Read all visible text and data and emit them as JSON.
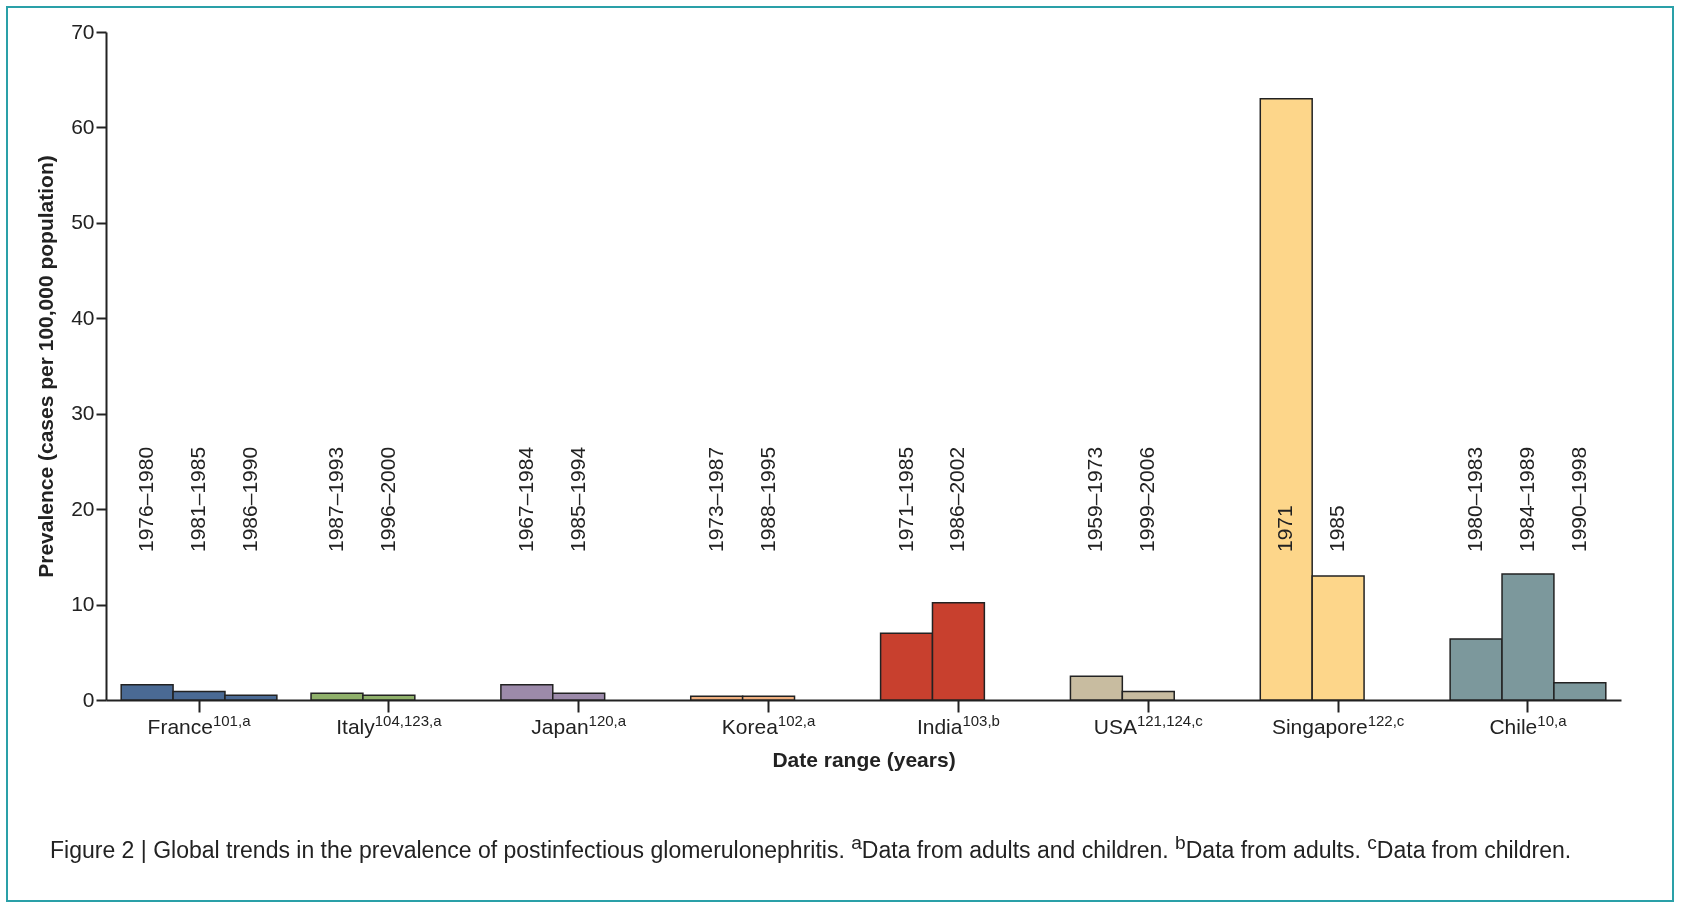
{
  "chart_data": {
    "type": "bar",
    "categories": [
      "France$^{101,a}$",
      "Italy$^{104,123,a}$",
      "Japan$^{120,a}$",
      "Korea$^{102,a}$",
      "India$^{103,b}$",
      "USA$^{121,124,c}$",
      "Singapore$^{122,c}$",
      "Chile$^{10,a}$"
    ],
    "series": [
      {
        "colors": [
          "#4a6a94",
          "#8fb06a",
          "#9c8aaa",
          "#f0b080",
          "#c8402e",
          "#c8bca0",
          "#fdd68a",
          "#7c989c"
        ],
        "values": [
          1.6,
          0.7,
          1.6,
          0.4,
          7.0,
          2.5,
          63,
          6.4
        ]
      },
      {
        "colors": [
          "#4a6a94",
          "#8fb06a",
          "#9c8aaa",
          "#f0b080",
          "#c8402e",
          "#c8bca0",
          "#fdd68a",
          "#7c989c"
        ],
        "values": [
          0.9,
          0.5,
          0.7,
          0.4,
          10.2,
          0.9,
          13.0,
          13.2
        ]
      },
      {
        "colors": [
          "#4a6a94",
          null,
          null,
          null,
          null,
          null,
          null,
          "#7c989c"
        ],
        "values": [
          0.5,
          null,
          null,
          null,
          null,
          null,
          null,
          1.8
        ]
      }
    ],
    "xlabel": "Date range (years)",
    "ylabel": "Prevalence (cases per 100,000 population)",
    "ylim": [
      0,
      70
    ],
    "yticks": [
      0,
      10,
      20,
      30,
      40,
      50,
      60,
      70
    ],
    "annotations": [
      "1976–1980",
      "1981–1985",
      "1986–1990",
      "1987–1993",
      "1996–2000",
      "1967–1984",
      "1985–1994",
      "1973–1987",
      "1988–1995",
      "1971–1985",
      "1986–2002",
      "1959–1973",
      "1999–2006",
      "1971",
      "1985",
      "1980–1983",
      "1984–1989",
      "1990–1998",
      "Figure 2 | Global trends in the prevalence of postinfectious glomerulonephritis. $^{a}$Data from adults and children. $^{b}$Data from adults. $^{c}$Data from children."
    ]
  }
}
